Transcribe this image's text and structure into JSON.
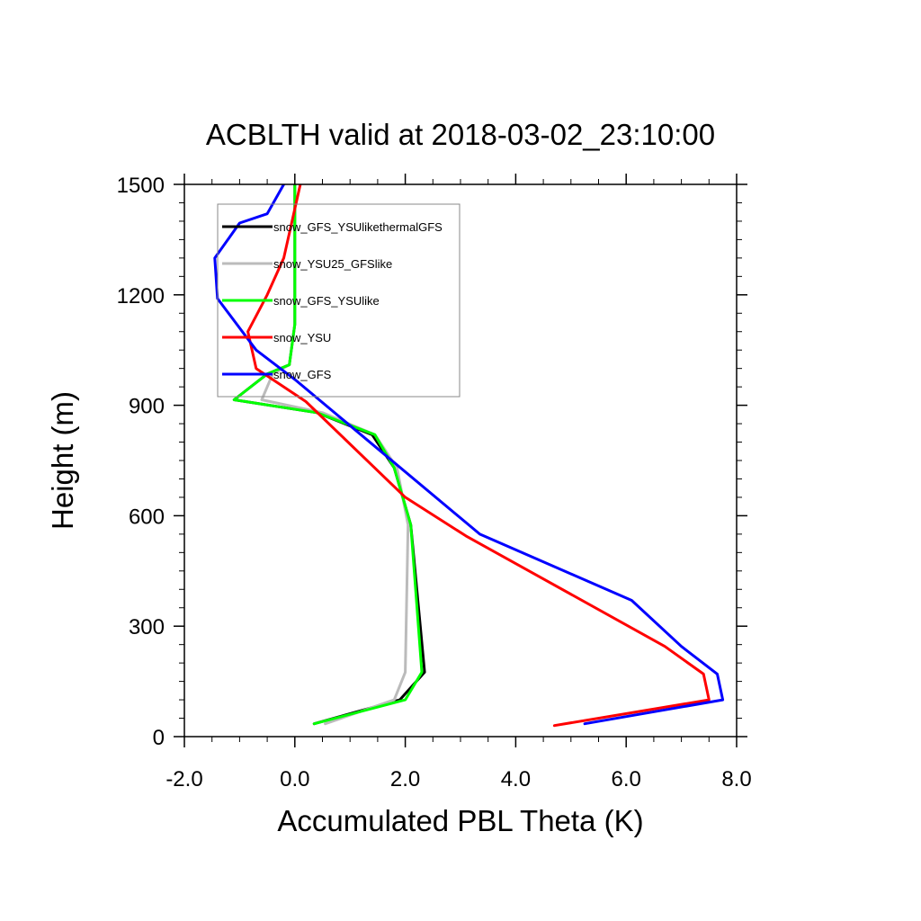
{
  "chart_data": {
    "type": "line",
    "title": "ACBLTH valid at 2018-03-02_23:10:00",
    "xlabel": "Accumulated PBL Theta (K)",
    "ylabel": "Height (m)",
    "xlim": [
      -2.0,
      8.0
    ],
    "ylim": [
      0,
      1500
    ],
    "x_ticks": [
      -2.0,
      0.0,
      2.0,
      4.0,
      6.0,
      8.0
    ],
    "x_tick_labels": [
      "-2.0",
      "0.0",
      "2.0",
      "4.0",
      "6.0",
      "8.0"
    ],
    "y_ticks": [
      0,
      300,
      600,
      900,
      1200,
      1500
    ],
    "y_tick_labels": [
      "0",
      "300",
      "600",
      "900",
      "1200",
      "1500"
    ],
    "grid": false,
    "legend_position": "top-left",
    "series": [
      {
        "name": "snow_GFS_YSUlikethermalGFS",
        "color": "#000000",
        "points": [
          [
            0.35,
            35
          ],
          [
            1.9,
            100
          ],
          [
            2.35,
            175
          ],
          [
            2.1,
            575
          ],
          [
            1.8,
            730
          ],
          [
            1.4,
            820
          ],
          [
            0.4,
            880
          ],
          [
            -1.1,
            915
          ],
          [
            -0.5,
            985
          ],
          [
            -0.1,
            1010
          ],
          [
            0.0,
            1120
          ],
          [
            0.0,
            1500
          ]
        ]
      },
      {
        "name": "snow_YSU25_GFSlike",
        "color": "#bbbbbb",
        "points": [
          [
            0.55,
            35
          ],
          [
            1.8,
            100
          ],
          [
            2.0,
            175
          ],
          [
            2.05,
            575
          ],
          [
            1.85,
            730
          ],
          [
            1.45,
            820
          ],
          [
            0.5,
            880
          ],
          [
            -0.6,
            915
          ],
          [
            -0.4,
            985
          ],
          [
            -0.1,
            1010
          ],
          [
            0.0,
            1120
          ],
          [
            0.0,
            1500
          ]
        ]
      },
      {
        "name": "snow_GFS_YSUlike",
        "color": "#00ff00",
        "points": [
          [
            0.35,
            35
          ],
          [
            2.0,
            100
          ],
          [
            2.3,
            175
          ],
          [
            2.1,
            575
          ],
          [
            1.8,
            730
          ],
          [
            1.45,
            820
          ],
          [
            0.4,
            880
          ],
          [
            -1.1,
            915
          ],
          [
            -0.5,
            985
          ],
          [
            -0.1,
            1010
          ],
          [
            0.0,
            1120
          ],
          [
            0.0,
            1500
          ]
        ]
      },
      {
        "name": "snow_YSU",
        "color": "#ff0000",
        "points": [
          [
            4.7,
            30
          ],
          [
            7.5,
            100
          ],
          [
            7.4,
            170
          ],
          [
            6.7,
            245
          ],
          [
            3.1,
            545
          ],
          [
            2.0,
            650
          ],
          [
            0.2,
            910
          ],
          [
            -0.7,
            1000
          ],
          [
            -0.85,
            1100
          ],
          [
            -0.5,
            1200
          ],
          [
            -0.2,
            1300
          ],
          [
            0.1,
            1500
          ]
        ]
      },
      {
        "name": "snow_GFS",
        "color": "#0000ff",
        "points": [
          [
            5.25,
            35
          ],
          [
            7.75,
            100
          ],
          [
            7.65,
            170
          ],
          [
            7.0,
            245
          ],
          [
            6.1,
            370
          ],
          [
            3.35,
            550
          ],
          [
            0.0,
            970
          ],
          [
            -0.7,
            1050
          ],
          [
            -1.4,
            1190
          ],
          [
            -1.45,
            1300
          ],
          [
            -1.0,
            1395
          ],
          [
            -0.5,
            1420
          ],
          [
            -0.2,
            1500
          ]
        ]
      }
    ]
  }
}
